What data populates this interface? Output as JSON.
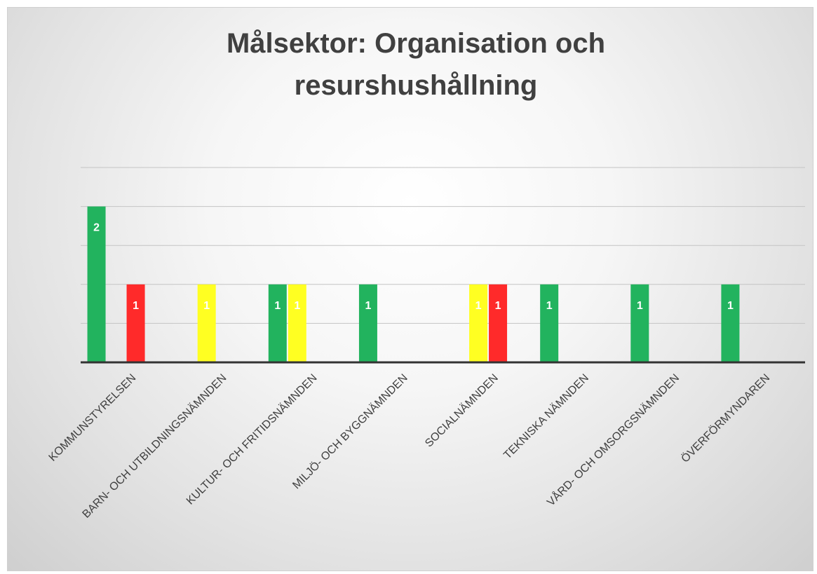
{
  "chart_data": {
    "type": "bar",
    "title": "Målsektor: Organisation och resurshushållning",
    "categories": [
      "KOMMUNSTYRELSEN",
      "BARN- OCH UTBILDNINGSNÄMNDEN",
      "KULTUR- OCH FRITIDSNÄMNDEN",
      "MILJÖ- OCH BYGGNÄMNDEN",
      "SOCIALNÄMNDEN",
      "TEKNISKA NÄMNDEN",
      "VÅRD- OCH OMSORGSNÄMNDEN",
      "ÖVERFÖRMYNDAREN"
    ],
    "series": [
      {
        "color": "#22b35e",
        "values": [
          2,
          null,
          1,
          1,
          null,
          1,
          1,
          1
        ]
      },
      {
        "color": "#ffff22",
        "values": [
          null,
          1,
          1,
          null,
          1,
          null,
          null,
          null
        ]
      },
      {
        "color": "#ff2a2a",
        "values": [
          1,
          null,
          null,
          null,
          1,
          null,
          null,
          null
        ]
      }
    ],
    "ylim": [
      0,
      2.5
    ],
    "yticks": [
      0,
      0.5,
      1,
      1.5,
      2,
      2.5
    ],
    "grid": true
  }
}
